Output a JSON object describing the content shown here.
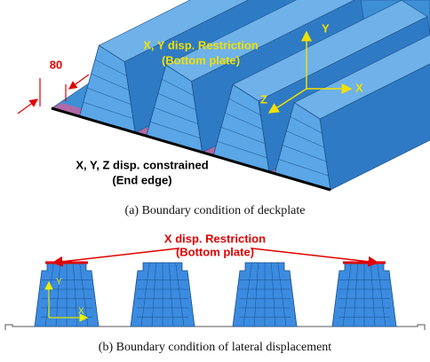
{
  "figure_a": {
    "dimension": "80",
    "restriction_label": [
      "X, Y disp. Restriction",
      "(Bottom plate)"
    ],
    "axes": {
      "y": "Y",
      "z": "Z",
      "x": "X"
    },
    "constraint_label": [
      "X, Y, Z disp. constrained",
      "(End edge)"
    ],
    "caption": "(a) Boundary condition of deckplate"
  },
  "figure_b": {
    "restriction_label": [
      "X disp. Restriction",
      "(Bottom plate)"
    ],
    "axes": {
      "y": "Y",
      "x": "X"
    },
    "caption": "(b) Boundary condition of lateral displacement"
  }
}
